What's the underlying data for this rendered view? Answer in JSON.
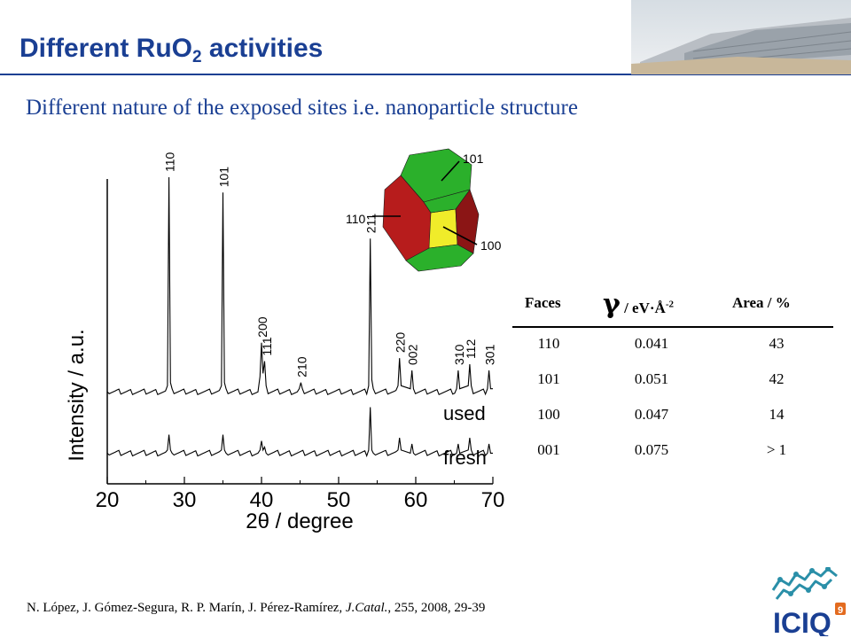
{
  "slide": {
    "title_main": "Different RuO",
    "title_sub": "2",
    "title_end": " activities",
    "subtitle": "Different nature of the exposed sites i.e. nanoparticle structure",
    "accent_color": "#1a3f93"
  },
  "chart_data": {
    "type": "line",
    "xlabel": "2θ / degree",
    "ylabel": "Intensity / a.u.",
    "xlim": [
      20,
      70
    ],
    "x_ticks": [
      "20",
      "30",
      "40",
      "50",
      "60",
      "70"
    ],
    "y_ticks": [],
    "series": [
      {
        "name": "used",
        "baseline": 0.3,
        "x": [
          20,
          27.8,
          28.0,
          28.2,
          28.4,
          34.8,
          35.0,
          35.2,
          35.4,
          39.8,
          40.0,
          40.2,
          40.4,
          40.6,
          44.9,
          45.1,
          45.3,
          53.9,
          54.1,
          54.3,
          54.5,
          57.7,
          57.9,
          58.1,
          59.3,
          59.5,
          59.7,
          65.3,
          65.5,
          65.7,
          66.8,
          67.0,
          67.2,
          69.3,
          69.5,
          69.7,
          70
        ],
        "y": [
          0.3,
          0.32,
          1.0,
          0.33,
          0.31,
          0.32,
          0.95,
          0.33,
          0.31,
          0.35,
          0.46,
          0.36,
          0.4,
          0.32,
          0.31,
          0.33,
          0.31,
          0.32,
          0.8,
          0.34,
          0.31,
          0.32,
          0.41,
          0.32,
          0.31,
          0.37,
          0.31,
          0.31,
          0.37,
          0.31,
          0.32,
          0.39,
          0.32,
          0.31,
          0.37,
          0.31,
          0.31
        ]
      },
      {
        "name": "fresh",
        "baseline": 0.1,
        "x": [
          20,
          27.8,
          28.0,
          28.2,
          28.4,
          34.8,
          35.0,
          35.2,
          35.4,
          39.8,
          40.0,
          40.2,
          40.4,
          40.6,
          53.9,
          54.1,
          54.3,
          54.5,
          57.7,
          57.9,
          58.1,
          59.3,
          59.5,
          59.7,
          65.3,
          65.5,
          65.7,
          66.8,
          67.0,
          67.2,
          69.3,
          69.5,
          69.7,
          70
        ],
        "y": [
          0.1,
          0.11,
          0.16,
          0.11,
          0.1,
          0.11,
          0.16,
          0.11,
          0.1,
          0.11,
          0.14,
          0.11,
          0.12,
          0.1,
          0.11,
          0.25,
          0.11,
          0.1,
          0.11,
          0.15,
          0.11,
          0.1,
          0.13,
          0.1,
          0.1,
          0.13,
          0.1,
          0.11,
          0.15,
          0.11,
          0.1,
          0.13,
          0.1,
          0.1
        ]
      }
    ],
    "peak_labels": [
      {
        "text": "110",
        "x": 28.0
      },
      {
        "text": "101",
        "x": 35.0
      },
      {
        "text": "200",
        "x": 40.0
      },
      {
        "text": "111",
        "x": 40.6
      },
      {
        "text": "210",
        "x": 45.1
      },
      {
        "text": "211",
        "x": 54.1
      },
      {
        "text": "220",
        "x": 57.9
      },
      {
        "text": "002",
        "x": 59.5
      },
      {
        "text": "310",
        "x": 65.5
      },
      {
        "text": "112",
        "x": 67.0
      },
      {
        "text": "301",
        "x": 69.5
      }
    ]
  },
  "crystal": {
    "labels": {
      "face_101": "101",
      "face_110": "110",
      "face_100": "100"
    },
    "colors": {
      "red": "#b71c1c",
      "green": "#2bb02b",
      "yellow": "#f0ec2a",
      "darkred": "#8b1515"
    }
  },
  "table": {
    "headers": {
      "faces": "Faces",
      "gamma_symbol": "γ",
      "gamma_unit": " /  eV·Å",
      "gamma_exp": "-2",
      "area": "Area  /  %"
    },
    "rows": [
      {
        "face": "110",
        "gamma": "0.041",
        "area": "43"
      },
      {
        "face": "101",
        "gamma": "0.051",
        "area": "42"
      },
      {
        "face": "100",
        "gamma": "0.047",
        "area": "14"
      },
      {
        "face": "001",
        "gamma": "0.075",
        "area": "> 1"
      }
    ]
  },
  "citation": {
    "authors": "N. López, J. Gómez-Segura, R. P. Marín, J. Pérez-Ramírez, ",
    "journal": "J.Catal.",
    "rest": ", 255, 2008, 29-39"
  },
  "logo": {
    "text": "ICIQ",
    "superscript": "9"
  }
}
